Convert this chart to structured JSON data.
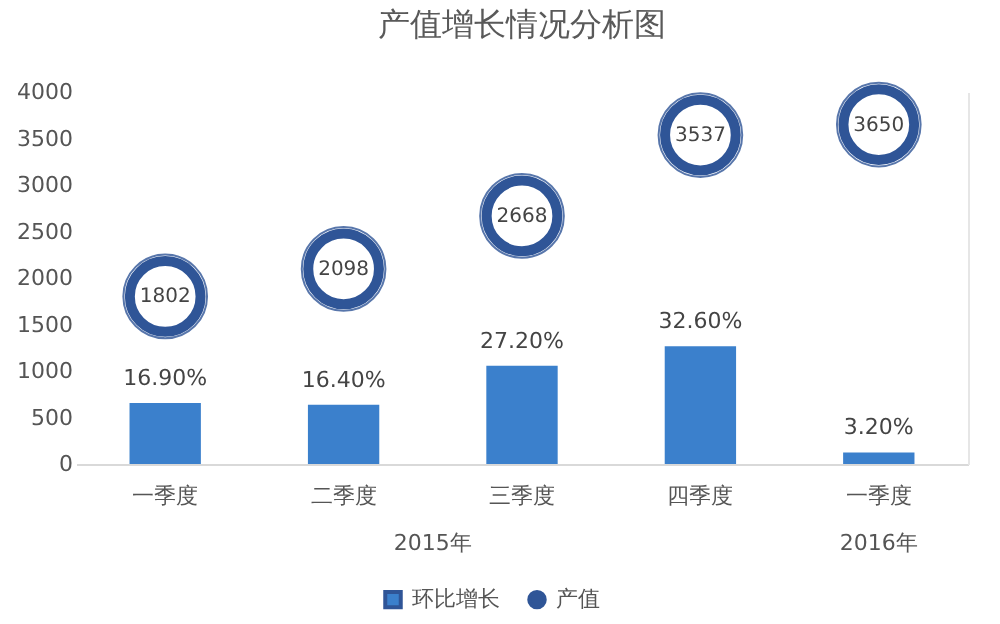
{
  "chart_data": {
    "type": "bar",
    "title": "产值增长情况分析图",
    "categories": [
      "一季度",
      "二季度",
      "三季度",
      "四季度",
      "一季度"
    ],
    "series": [
      {
        "name": "环比增长",
        "axis": "y2",
        "color": "#3b80cc",
        "values": [
          16.9,
          16.4,
          27.2,
          32.6,
          3.2
        ],
        "value_labels": [
          "16.90%",
          "16.40%",
          "27.20%",
          "32.60%",
          "3.20%"
        ]
      },
      {
        "name": "产值",
        "type": "scatter",
        "color": "#2f5597",
        "values": [
          1802,
          2098,
          2668,
          3537,
          3650
        ],
        "value_labels": [
          "1802",
          "2098",
          "2668",
          "3537",
          "3650"
        ]
      }
    ],
    "annotations": [
      "2015年",
      "2016年"
    ],
    "ylim": [
      0,
      4000
    ],
    "yticks": [
      0,
      500,
      1000,
      1500,
      2000,
      2500,
      3000,
      3500,
      4000
    ],
    "y2lim": [
      0,
      103
    ],
    "tick_labels": "y",
    "grid": false,
    "legend": "bottom",
    "marker": "circle"
  }
}
